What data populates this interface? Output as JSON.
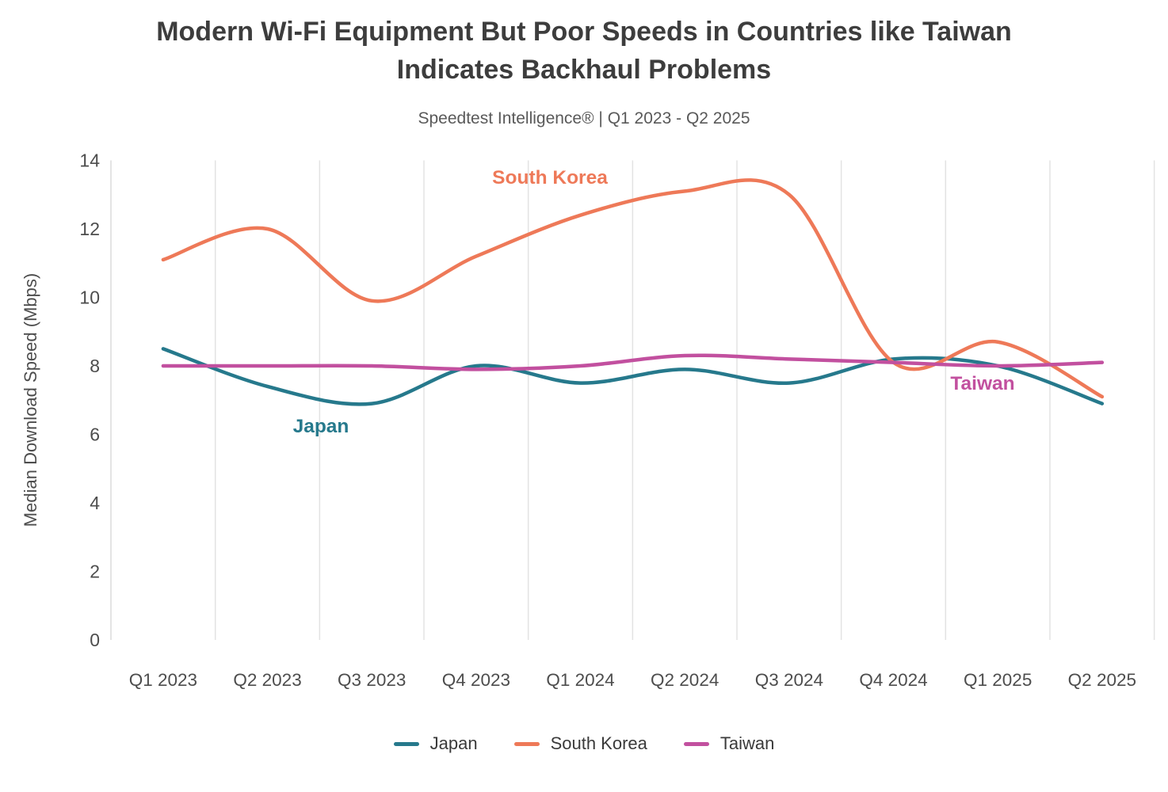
{
  "page": {
    "title_line1": "Modern Wi-Fi Equipment But Poor Speeds in Countries like Taiwan",
    "title_line2": "Indicates Backhaul Problems",
    "subtitle": "Speedtest Intelligence® | Q1 2023 - Q2 2025"
  },
  "chart_data": {
    "type": "line",
    "title": "Modern Wi-Fi Equipment But Poor Speeds in Countries like Taiwan Indicates Backhaul Problems",
    "subtitle": "Speedtest Intelligence® | Q1 2023 - Q2 2025",
    "xlabel": "",
    "ylabel": "Median Download Speed (Mbps)",
    "ylim": [
      0,
      14
    ],
    "y_ticks": [
      0,
      2,
      4,
      6,
      8,
      10,
      12,
      14
    ],
    "grid": "vertical-only",
    "legend_position": "bottom",
    "categories": [
      "Q1 2023",
      "Q2 2023",
      "Q3 2023",
      "Q4 2023",
      "Q1 2024",
      "Q2 2024",
      "Q3 2024",
      "Q4 2024",
      "Q1 2025",
      "Q2 2025"
    ],
    "series": [
      {
        "name": "Japan",
        "color": "#26798C",
        "values": [
          8.5,
          7.4,
          6.9,
          8.0,
          7.5,
          7.9,
          7.5,
          8.2,
          8.0,
          6.9
        ]
      },
      {
        "name": "South Korea",
        "color": "#EE7958",
        "values": [
          11.1,
          12.0,
          9.9,
          11.2,
          12.4,
          13.1,
          13.0,
          8.1,
          8.7,
          7.1
        ]
      },
      {
        "name": "Taiwan",
        "color": "#C2509F",
        "values": [
          8.0,
          8.0,
          8.0,
          7.9,
          8.0,
          8.3,
          8.2,
          8.1,
          8.0,
          8.1
        ]
      }
    ],
    "annotations": [
      {
        "text": "South Korea",
        "series": "South Korea"
      },
      {
        "text": "Japan",
        "series": "Japan"
      },
      {
        "text": "Taiwan",
        "series": "Taiwan"
      }
    ]
  },
  "colors": {
    "title_text": "#3D3D3D",
    "subtitle_text": "#595959",
    "axis_text": "#4D4D4D",
    "gridline": "#E3E3E3",
    "axis_line": "#DCDCDC"
  }
}
